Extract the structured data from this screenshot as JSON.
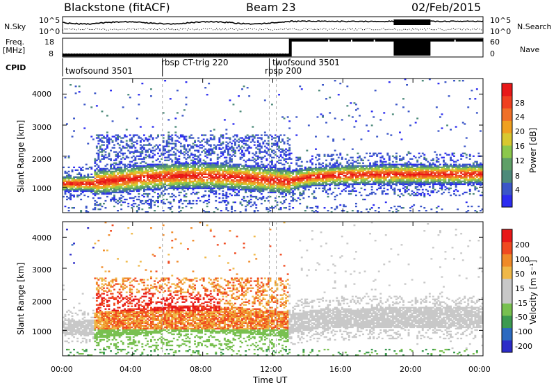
{
  "header": {
    "title": "Blackstone (fitACF)",
    "beam": "Beam 23",
    "date": "02/Feb/2015"
  },
  "side_labels": {
    "n_sky": "N.Sky",
    "n_search": "N.Search",
    "freq_line1": "Freq.",
    "freq_line2": "[MHz]",
    "nave": "Nave",
    "cpid": "CPID"
  },
  "colors": {
    "power_scale": [
      "#2c2cf0",
      "#3b56c8",
      "#4d8a7a",
      "#5fa068",
      "#8cc84c",
      "#d8c830",
      "#f0a020",
      "#f07028",
      "#f04020",
      "#e81818"
    ],
    "velocity_scale": [
      "#e81818",
      "#f04a20",
      "#f08a28",
      "#f0b848",
      "#c8c8c8",
      "#c8c8c8",
      "#78c050",
      "#3c9a50",
      "#2c6ac0",
      "#2c2cc8"
    ],
    "gray_band": "#c8c8c8"
  },
  "chart_data": [
    {
      "type": "line",
      "name": "noise-panel",
      "left_label": "N.Sky",
      "right_label": "N.Search",
      "y_ticks_left": [
        "10^5",
        "10^0"
      ],
      "y_ticks_right": [
        "10^5",
        "10^0"
      ],
      "x": [
        "00:00",
        "04:00",
        "08:00",
        "12:00",
        "16:00",
        "20:00",
        "00:00"
      ],
      "notes": "Sky noise (solid) and search noise (dotted) traces"
    },
    {
      "type": "line",
      "name": "freq-nave-panel",
      "left_label_1": "Freq.",
      "left_label_2": "[MHz]",
      "right_label": "Nave",
      "y_ticks_left": [
        "18",
        "8"
      ],
      "y_ticks_right": [
        "60",
        "0"
      ],
      "series": [
        {
          "name": "Freq.",
          "x": [
            0,
            13.0,
            13.0,
            24
          ],
          "values": [
            9,
            9,
            17,
            17
          ]
        },
        {
          "name": "Nave",
          "x": [
            0,
            13.0,
            13.0,
            24
          ],
          "values": [
            10,
            10,
            55,
            55
          ]
        }
      ]
    },
    {
      "type": "table",
      "name": "cpid-panel",
      "segments": [
        {
          "label": "twofsound 3501",
          "start_ut": 0.0
        },
        {
          "label": "rbsp CT-trig 220",
          "start_ut": 5.7
        },
        {
          "label": "rbsp 200",
          "start_ut": 11.8
        },
        {
          "label": "twofsound 3501",
          "start_ut": 12.2
        }
      ]
    },
    {
      "type": "heatmap",
      "name": "power-panel",
      "ylabel": "Slant Range [km]",
      "colorbar_label": "Power [dB]",
      "colorbar_ticks": [
        "28",
        "24",
        "20",
        "16",
        "12",
        "8",
        "4"
      ],
      "y_ticks": [
        "4000",
        "3000",
        "2000",
        "1000"
      ],
      "ylim": [
        180,
        4500
      ],
      "xlim": [
        0,
        24
      ],
      "zlim": [
        0,
        30
      ],
      "scatter_range": [
        1.0,
        2.2,
        5,
        30
      ]
    },
    {
      "type": "heatmap",
      "name": "velocity-panel",
      "ylabel": "Slant Range [km]",
      "colorbar_label": "Velocity [m s⁻¹]",
      "colorbar_ticks": [
        "200",
        "100",
        "50",
        "15",
        "-15",
        "-50",
        "-100",
        "-200"
      ],
      "y_ticks": [
        "4000",
        "3000",
        "2000",
        "1000"
      ],
      "xlabel": "Time UT",
      "x_ticks": [
        "00:00",
        "04:00",
        "08:00",
        "12:00",
        "16:00",
        "20:00",
        "00:00"
      ],
      "ylim": [
        180,
        4500
      ],
      "xlim": [
        0,
        24
      ],
      "zlim": [
        -250,
        250
      ]
    }
  ]
}
